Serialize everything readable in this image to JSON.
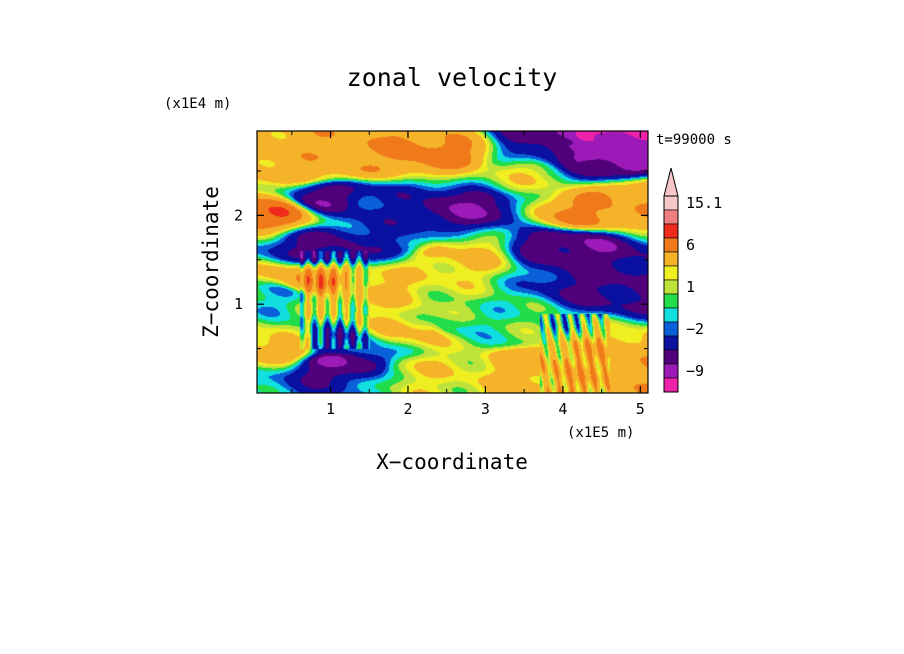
{
  "chart_data": {
    "type": "heatmap",
    "title": "zonal velocity",
    "time_label": "t=99000 s",
    "xlabel": "X−coordinate",
    "ylabel": "Z−coordinate",
    "x_unit": "(x1E5 m)",
    "y_unit": "(x1E4 m)",
    "xlim": [
      0.05,
      5.1
    ],
    "ylim": [
      0.0,
      2.95
    ],
    "x_ticks": [
      1,
      2,
      3,
      4,
      5
    ],
    "y_ticks": [
      1,
      2
    ],
    "x_tick_labels": [
      "1",
      "2",
      "3",
      "4",
      "5"
    ],
    "y_tick_labels": [
      "1",
      "2"
    ],
    "grid": false,
    "colorbar": {
      "labels": [
        "15.1",
        "6",
        "1",
        "−2",
        "−9"
      ],
      "label_values": [
        15.1,
        6,
        1,
        -2,
        -9
      ],
      "levels": [
        {
          "value": 15.1,
          "color": "#f6c7c7"
        },
        {
          "value": 12,
          "color": "#f08080"
        },
        {
          "value": 9,
          "color": "#ee2a1a"
        },
        {
          "value": 6,
          "color": "#f07a1a"
        },
        {
          "value": 3,
          "color": "#f5b32a"
        },
        {
          "value": 2,
          "color": "#eeee20"
        },
        {
          "value": 1,
          "color": "#bde33b"
        },
        {
          "value": 0,
          "color": "#22dd4a"
        },
        {
          "value": -1,
          "color": "#11dede"
        },
        {
          "value": -2,
          "color": "#0a60d8"
        },
        {
          "value": -4,
          "color": "#0a10a0"
        },
        {
          "value": -6,
          "color": "#50007a"
        },
        {
          "value": -9,
          "color": "#9b1ab8"
        },
        {
          "value": -12,
          "color": "#ee22aa"
        }
      ],
      "extend": "max"
    },
    "field_features": [
      {
        "x": 2.3,
        "z": 2.7,
        "u": 6.5
      },
      {
        "x": 1.3,
        "z": 2.65,
        "u": 5
      },
      {
        "x": 0.7,
        "z": 2.55,
        "u": 4
      },
      {
        "x": 4.4,
        "z": 2.9,
        "u": -10
      },
      {
        "x": 4.5,
        "z": 2.6,
        "u": -7
      },
      {
        "x": 4.0,
        "z": 2.8,
        "u": -5
      },
      {
        "x": 3.55,
        "z": 2.45,
        "u": 1.5
      },
      {
        "x": 1.0,
        "z": 2.2,
        "u": -5.5
      },
      {
        "x": 2.7,
        "z": 2.1,
        "u": -6
      },
      {
        "x": 1.7,
        "z": 2.15,
        "u": -3
      },
      {
        "x": 4.35,
        "z": 2.05,
        "u": 6
      },
      {
        "x": 4.9,
        "z": 2.2,
        "u": 5
      },
      {
        "x": 0.15,
        "z": 2.05,
        "u": 7.5
      },
      {
        "x": 4.1,
        "z": 1.65,
        "u": -6
      },
      {
        "x": 4.75,
        "z": 1.2,
        "u": -5
      },
      {
        "x": 1.0,
        "z": 1.65,
        "u": -5
      },
      {
        "x": 1.7,
        "z": 1.7,
        "u": -3
      },
      {
        "x": 2.6,
        "z": 1.55,
        "u": 3
      },
      {
        "x": 0.85,
        "z": 1.25,
        "u": 6
      },
      {
        "x": 1.3,
        "z": 1.2,
        "u": 3
      },
      {
        "x": 0.25,
        "z": 1.1,
        "u": -1
      },
      {
        "x": 2.7,
        "z": 0.75,
        "u": -0.5
      },
      {
        "x": 3.25,
        "z": 0.65,
        "u": 0
      },
      {
        "x": 2.1,
        "z": 0.7,
        "u": 3
      },
      {
        "x": 1.1,
        "z": 0.35,
        "u": -6
      },
      {
        "x": 1.05,
        "z": 0.55,
        "u": -3
      },
      {
        "x": 4.3,
        "z": 0.25,
        "u": 4
      },
      {
        "x": 4.8,
        "z": 0.3,
        "u": 5
      },
      {
        "x": 3.7,
        "z": 0.4,
        "u": 4
      },
      {
        "x": 2.3,
        "z": 0.25,
        "u": 2
      },
      {
        "x": 0.4,
        "z": 0.5,
        "u": 4
      }
    ]
  }
}
